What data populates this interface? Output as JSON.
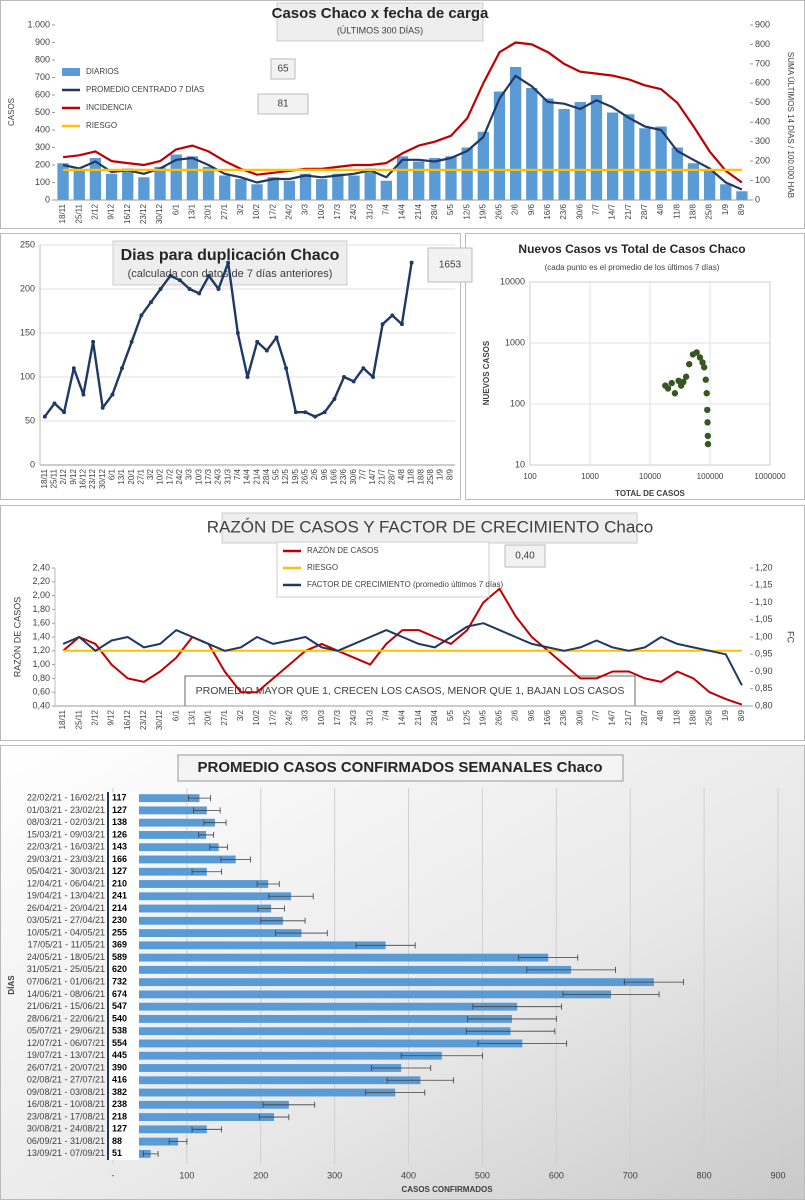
{
  "chart_data": [
    {
      "type": "bar",
      "title": "Casos Chaco x fecha de carga",
      "subtitle": "(ÚLTIMOS 300 DÍAS)",
      "ylabel": "CASOS",
      "y2label": "SUMA  ÚLTIMOS 14 DÍAS / 100.000 HAB",
      "annotations": [
        "65",
        "81"
      ],
      "categories": [
        "18/11",
        "25/11",
        "2/12",
        "9/12",
        "16/12",
        "23/12",
        "30/12",
        "6/1",
        "13/1",
        "20/1",
        "27/1",
        "3/2",
        "10/2",
        "17/2",
        "24/2",
        "3/3",
        "10/3",
        "17/3",
        "24/3",
        "31/3",
        "7/4",
        "14/4",
        "21/4",
        "28/4",
        "5/5",
        "12/5",
        "19/5",
        "26/5",
        "2/6",
        "9/6",
        "16/6",
        "23/6",
        "30/6",
        "7/7",
        "14/7",
        "21/7",
        "28/7",
        "4/8",
        "11/8",
        "18/8",
        "25/8",
        "1/9",
        "8/9"
      ],
      "series": [
        {
          "name": "DIARIOS",
          "kind": "bar",
          "color": "#5b9bd5",
          "values": [
            210,
            170,
            240,
            150,
            180,
            130,
            190,
            260,
            250,
            190,
            140,
            120,
            90,
            130,
            110,
            150,
            120,
            150,
            140,
            180,
            110,
            250,
            220,
            240,
            250,
            300,
            390,
            620,
            760,
            640,
            580,
            520,
            560,
            600,
            500,
            490,
            410,
            420,
            300,
            210,
            170,
            90,
            50
          ]
        },
        {
          "name": "PROMEDIO CENTRADO 7 DÍAS",
          "kind": "line",
          "color": "#1f3864",
          "values": [
            200,
            180,
            220,
            160,
            170,
            150,
            180,
            230,
            240,
            200,
            150,
            130,
            100,
            120,
            120,
            140,
            130,
            140,
            150,
            170,
            130,
            230,
            230,
            220,
            240,
            280,
            360,
            580,
            710,
            650,
            560,
            550,
            520,
            570,
            530,
            470,
            420,
            400,
            280,
            230,
            180,
            100,
            60
          ]
        },
        {
          "name": "INCIDENCIA",
          "kind": "line",
          "axis": "y2",
          "color": "#c00000",
          "values": [
            220,
            230,
            250,
            200,
            190,
            180,
            200,
            260,
            280,
            250,
            200,
            160,
            130,
            140,
            150,
            160,
            160,
            170,
            180,
            180,
            190,
            240,
            280,
            300,
            330,
            420,
            600,
            760,
            810,
            800,
            760,
            700,
            660,
            650,
            640,
            620,
            590,
            570,
            500,
            380,
            250,
            150,
            90
          ]
        },
        {
          "name": "RIESGO",
          "kind": "line",
          "axis": "y2",
          "color": "#ffc000",
          "values": [
            155,
            155,
            155,
            155,
            155,
            155,
            155,
            155,
            155,
            155,
            155,
            155,
            155,
            155,
            155,
            155,
            155,
            155,
            155,
            155,
            155,
            155,
            155,
            155,
            155,
            155,
            155,
            155,
            155,
            155,
            155,
            155,
            155,
            155,
            155,
            155,
            155,
            155,
            155,
            155,
            155,
            155,
            155
          ]
        }
      ],
      "ylim": [
        0,
        1000
      ],
      "yticks": [
        0,
        100,
        200,
        300,
        400,
        500,
        600,
        700,
        800,
        900,
        {
          "value": 1000,
          "label": "1.000"
        }
      ],
      "y2lim": [
        0,
        900
      ],
      "y2ticks": [
        0,
        100,
        200,
        300,
        400,
        500,
        600,
        700,
        800,
        900
      ],
      "grid": false
    },
    {
      "type": "line",
      "title": "Dias para duplicación Chaco",
      "subtitle": "(calculada con datos de 7 días anteriores)",
      "annotations": [
        "1653"
      ],
      "categories": [
        "18/11",
        "25/11",
        "2/12",
        "9/12",
        "16/12",
        "23/12",
        "30/12",
        "6/1",
        "13/1",
        "20/1",
        "27/1",
        "3/2",
        "10/2",
        "17/2",
        "24/2",
        "3/3",
        "10/3",
        "17/3",
        "24/3",
        "31/3",
        "7/4",
        "14/4",
        "21/4",
        "28/4",
        "5/5",
        "12/5",
        "19/5",
        "26/5",
        "2/6",
        "9/6",
        "16/6",
        "23/6",
        "30/6",
        "7/7",
        "14/7",
        "21/7",
        "28/7",
        "4/8",
        "11/8",
        "18/8",
        "25/8",
        "1/9",
        "8/9"
      ],
      "values": [
        55,
        70,
        60,
        110,
        80,
        140,
        65,
        80,
        110,
        140,
        170,
        185,
        200,
        215,
        210,
        200,
        195,
        215,
        200,
        230,
        150,
        100,
        140,
        130,
        145,
        110,
        60,
        60,
        55,
        60,
        75,
        100,
        95,
        110,
        100,
        160,
        170,
        160,
        230,
        null,
        null,
        null,
        null
      ],
      "color": "#1f3864",
      "markers": true,
      "ylim": [
        0,
        250
      ],
      "yticks": [
        0,
        50,
        100,
        150,
        200,
        250
      ],
      "grid": true
    },
    {
      "type": "scatter",
      "title": "Nuevos Casos vs Total de Casos Chaco",
      "subtitle": "(cada punto es el promedio de los últimos 7 días)",
      "xlabel": "TOTAL DE CASOS",
      "ylabel": "NUEVOS CASOS",
      "log": true,
      "color": "#375623",
      "x": [
        18000,
        20000,
        23000,
        26000,
        30000,
        33000,
        36000,
        40000,
        45000,
        52000,
        60000,
        68000,
        75000,
        80000,
        85000,
        88000,
        90000,
        91000,
        92000,
        92500
      ],
      "values": [
        200,
        180,
        220,
        150,
        240,
        200,
        230,
        280,
        450,
        650,
        700,
        580,
        480,
        400,
        250,
        150,
        80,
        50,
        30,
        22
      ],
      "xlim": [
        100,
        1000000
      ],
      "xticks": [
        100,
        1000,
        10000,
        100000,
        1000000
      ],
      "ylim": [
        10,
        10000
      ],
      "yticks": [
        10,
        100,
        1000,
        10000
      ],
      "grid": true
    },
    {
      "type": "line",
      "title": "RAZÓN DE CASOS Y FACTOR DE CRECIMIENTO Chaco",
      "ylabel": "RAZÓN DE CASOS",
      "y2label": "FC",
      "annotations": [
        "0,40",
        "PROMEDIO MAYOR QUE 1, CRECEN LOS CASOS, MENOR QUE 1, BAJAN LOS CASOS"
      ],
      "categories": [
        "18/11",
        "25/11",
        "2/12",
        "9/12",
        "16/12",
        "23/12",
        "30/12",
        "6/1",
        "13/1",
        "20/1",
        "27/1",
        "3/2",
        "10/2",
        "17/2",
        "24/2",
        "3/3",
        "10/3",
        "17/3",
        "24/3",
        "31/3",
        "7/4",
        "14/4",
        "21/4",
        "28/4",
        "5/5",
        "12/5",
        "19/5",
        "26/5",
        "2/6",
        "9/6",
        "16/6",
        "23/6",
        "30/6",
        "7/7",
        "14/7",
        "21/7",
        "28/7",
        "4/8",
        "11/8",
        "18/8",
        "25/8",
        "1/9",
        "8/9"
      ],
      "series": [
        {
          "name": "RAZÓN DE CASOS",
          "color": "#c00000",
          "values": [
            1.2,
            1.4,
            1.3,
            1.0,
            0.8,
            0.75,
            0.9,
            1.1,
            1.4,
            1.3,
            0.9,
            0.6,
            0.6,
            0.8,
            1.0,
            1.2,
            1.3,
            1.2,
            1.1,
            1.0,
            1.3,
            1.5,
            1.5,
            1.4,
            1.3,
            1.5,
            1.9,
            2.1,
            1.7,
            1.4,
            1.2,
            1.0,
            0.8,
            0.8,
            0.9,
            0.9,
            0.8,
            0.75,
            0.9,
            0.8,
            0.6,
            0.5,
            0.42
          ]
        },
        {
          "name": "RIESGO",
          "color": "#ffc000",
          "values": [
            1.2,
            1.2,
            1.2,
            1.2,
            1.2,
            1.2,
            1.2,
            1.2,
            1.2,
            1.2,
            1.2,
            1.2,
            1.2,
            1.2,
            1.2,
            1.2,
            1.2,
            1.2,
            1.2,
            1.2,
            1.2,
            1.2,
            1.2,
            1.2,
            1.2,
            1.2,
            1.2,
            1.2,
            1.2,
            1.2,
            1.2,
            1.2,
            1.2,
            1.2,
            1.2,
            1.2,
            1.2,
            1.2,
            1.2,
            1.2,
            1.2,
            1.2,
            1.2
          ]
        },
        {
          "name": "FACTOR DE CRECIMIENTO (promedio últimos 7 días)",
          "axis": "y2",
          "color": "#1f3864",
          "values": [
            0.98,
            1.0,
            0.96,
            0.99,
            1.0,
            0.97,
            0.98,
            1.02,
            1.0,
            0.98,
            0.96,
            0.97,
            1.0,
            0.98,
            0.99,
            1.0,
            0.97,
            0.96,
            0.98,
            1.0,
            1.02,
            1.0,
            0.98,
            0.97,
            1.0,
            1.03,
            1.04,
            1.02,
            1.0,
            0.98,
            0.97,
            0.96,
            0.97,
            0.99,
            0.97,
            0.96,
            0.97,
            1.0,
            0.98,
            0.97,
            0.96,
            0.95,
            0.86
          ]
        }
      ],
      "ylim": [
        0.4,
        2.4
      ],
      "yticks": [
        {
          "value": 0.4,
          "label": "0,40"
        },
        {
          "value": 0.6,
          "label": "0,60"
        },
        {
          "value": 0.8,
          "label": "0,80"
        },
        {
          "value": 1.0,
          "label": "1,00"
        },
        {
          "value": 1.2,
          "label": "1,20"
        },
        {
          "value": 1.4,
          "label": "1,40"
        },
        {
          "value": 1.6,
          "label": "1,60"
        },
        {
          "value": 1.8,
          "label": "1,80"
        },
        {
          "value": 2.0,
          "label": "2,00"
        },
        {
          "value": 2.2,
          "label": "2,20"
        },
        {
          "value": 2.4,
          "label": "2,40"
        }
      ],
      "y2lim": [
        0.8,
        1.2
      ],
      "y2ticks": [
        {
          "value": 0.8,
          "label": "0,80"
        },
        {
          "value": 0.85,
          "label": "0,85"
        },
        {
          "value": 0.9,
          "label": "0,90"
        },
        {
          "value": 0.95,
          "label": "0,95"
        },
        {
          "value": 1.0,
          "label": "1,00"
        },
        {
          "value": 1.05,
          "label": "1,05"
        },
        {
          "value": 1.1,
          "label": "1,10"
        },
        {
          "value": 1.15,
          "label": "1,15"
        },
        {
          "value": 1.2,
          "label": "1,20"
        }
      ],
      "grid": false
    },
    {
      "type": "hbar",
      "title": "PROMEDIO CASOS CONFIRMADOS SEMANALES Chaco",
      "xlabel": "CASOS CONFIRMADOS",
      "ylabel": "DÍAS",
      "color": "#5b9bd5",
      "categories": [
        "22/02/21 - 16/02/21",
        "01/03/21 - 23/02/21",
        "08/03/21 - 02/03/21",
        "15/03/21 - 09/03/21",
        "22/03/21 - 16/03/21",
        "29/03/21 - 23/03/21",
        "05/04/21 - 30/03/21",
        "12/04/21 - 06/04/21",
        "19/04/21 - 13/04/21",
        "26/04/21 - 20/04/21",
        "03/05/21 - 27/04/21",
        "10/05/21 - 04/05/21",
        "17/05/21 - 11/05/21",
        "24/05/21 - 18/05/21",
        "31/05/21 - 25/05/21",
        "07/06/21 - 01/06/21",
        "14/06/21 - 08/06/21",
        "21/06/21 - 15/06/21",
        "28/06/21 - 22/06/21",
        "05/07/21 - 29/06/21",
        "12/07/21 - 06/07/21",
        "19/07/21 - 13/07/21",
        "26/07/21 - 20/07/21",
        "02/08/21 - 27/07/21",
        "09/08/21 - 03/08/21",
        "16/08/21 - 10/08/21",
        "23/08/21 - 17/08/21",
        "30/08/21 - 24/08/21",
        "06/09/21 - 31/08/21",
        "13/09/21 - 07/09/21"
      ],
      "values": [
        117,
        127,
        138,
        126,
        143,
        166,
        127,
        210,
        241,
        214,
        230,
        255,
        369,
        589,
        620,
        732,
        674,
        547,
        540,
        538,
        554,
        445,
        390,
        416,
        382,
        238,
        218,
        127,
        88,
        51
      ],
      "errors": [
        15,
        18,
        15,
        10,
        12,
        20,
        20,
        15,
        30,
        18,
        30,
        35,
        40,
        40,
        60,
        40,
        65,
        60,
        60,
        60,
        60,
        55,
        40,
        45,
        40,
        35,
        20,
        20,
        12,
        10
      ],
      "xlim": [
        0,
        900
      ],
      "xticks": [
        {
          "value": 0,
          "label": "-"
        },
        100,
        200,
        300,
        400,
        500,
        600,
        700,
        800,
        900
      ],
      "grid": true
    }
  ]
}
